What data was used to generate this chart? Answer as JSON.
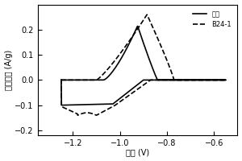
{
  "title": "",
  "xlabel": "电压 (V)",
  "ylabel": "电流密度 (A/g)",
  "xlim": [
    -1.35,
    -0.5
  ],
  "ylim": [
    -0.22,
    0.3
  ],
  "xticks": [
    -1.2,
    -1.0,
    -0.8,
    -0.6
  ],
  "yticks": [
    -0.2,
    -0.1,
    0.0,
    0.1,
    0.2
  ],
  "legend_solid": "阶用",
  "legend_dashed": "B24-1",
  "background_color": "#ffffff",
  "line_color": "#000000",
  "figsize": [
    3.0,
    2.0
  ],
  "dpi": 100
}
